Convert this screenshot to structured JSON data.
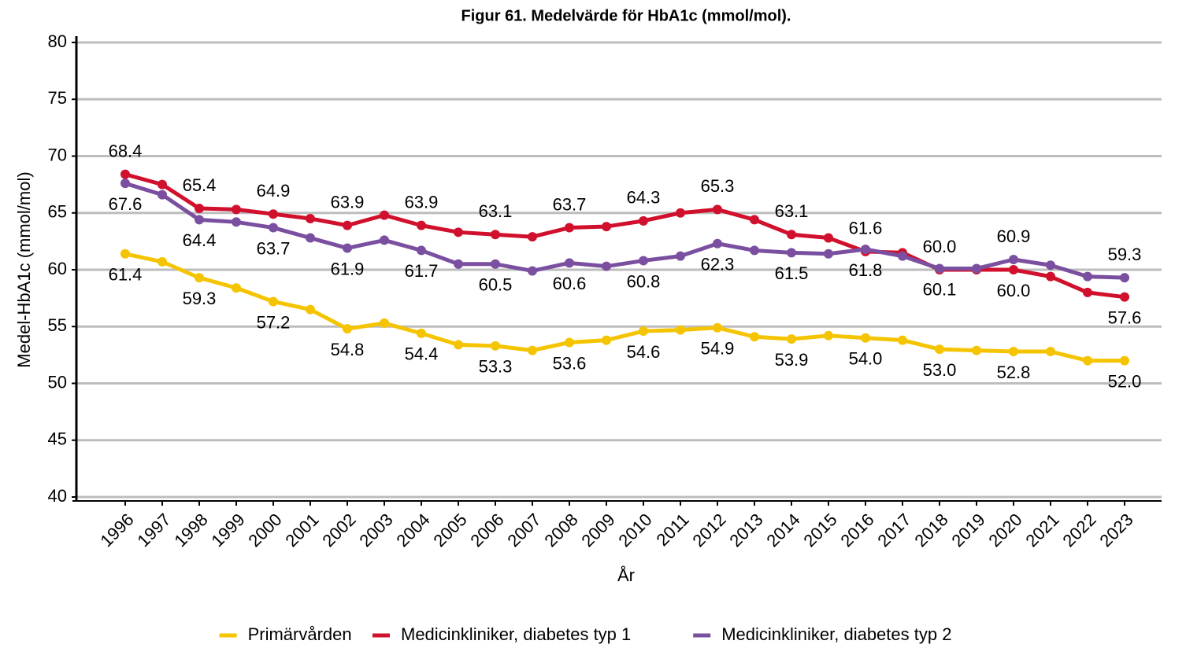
{
  "chart_data": {
    "type": "line",
    "title": "Figur 61. Medelvärde för HbA1c (mmol/mol).",
    "x_label": "År",
    "y_label": "Medel-HbA1c (mmol/mol)",
    "categories": [
      "1996",
      "1997",
      "1998",
      "1999",
      "2000",
      "2001",
      "2002",
      "2003",
      "2004",
      "2005",
      "2006",
      "2007",
      "2008",
      "2009",
      "2010",
      "2011",
      "2012",
      "2013",
      "2014",
      "2015",
      "2016",
      "2017",
      "2018",
      "2019",
      "2020",
      "2021",
      "2022",
      "2023"
    ],
    "ylim": [
      40,
      80
    ],
    "yticks": [
      40,
      45,
      50,
      55,
      60,
      65,
      70,
      75,
      80
    ],
    "grid": true,
    "legend": "bottom",
    "series": [
      {
        "name": "Primärvården",
        "color": "#f5c400",
        "values": [
          61.4,
          60.7,
          59.3,
          58.4,
          57.2,
          56.5,
          54.8,
          55.3,
          54.4,
          53.4,
          53.3,
          52.9,
          53.6,
          53.8,
          54.6,
          54.7,
          54.9,
          54.1,
          53.9,
          54.2,
          54.0,
          53.8,
          53.0,
          52.9,
          52.8,
          52.8,
          52.0,
          52.0
        ],
        "value_labels": [
          "61.4",
          null,
          "59.3",
          null,
          "57.2",
          null,
          "54.8",
          null,
          "54.4",
          null,
          "53.3",
          null,
          "53.6",
          null,
          "54.6",
          null,
          "54.9",
          null,
          "53.9",
          null,
          "54.0",
          null,
          "53.0",
          null,
          "52.8",
          null,
          null,
          "52.0"
        ]
      },
      {
        "name": "Medicinkliniker, diabetes typ 1",
        "color": "#d0102c",
        "values": [
          68.4,
          67.5,
          65.4,
          65.3,
          64.9,
          64.5,
          63.9,
          64.8,
          63.9,
          63.3,
          63.1,
          62.9,
          63.7,
          63.8,
          64.3,
          65.0,
          65.3,
          64.4,
          63.1,
          62.8,
          61.6,
          61.5,
          60.0,
          60.0,
          60.0,
          59.4,
          58.0,
          57.6
        ],
        "value_labels": [
          "68.4",
          null,
          "65.4",
          null,
          "64.9",
          null,
          "63.9",
          null,
          "63.9",
          null,
          "63.1",
          null,
          "63.7",
          null,
          "64.3",
          null,
          "65.3",
          null,
          "63.1",
          null,
          "61.6",
          null,
          "60.0",
          null,
          "60.0",
          null,
          null,
          "57.6"
        ]
      },
      {
        "name": "Medicinkliniker, diabetes typ 2",
        "color": "#7b4fa0",
        "values": [
          67.6,
          66.6,
          64.4,
          64.2,
          63.7,
          62.8,
          61.9,
          62.6,
          61.7,
          60.5,
          60.5,
          59.9,
          60.6,
          60.3,
          60.8,
          61.2,
          62.3,
          61.7,
          61.5,
          61.4,
          61.8,
          61.2,
          60.1,
          60.1,
          60.9,
          60.4,
          59.4,
          59.3
        ],
        "value_labels": [
          "67.6",
          null,
          "64.4",
          null,
          "63.7",
          null,
          "61.9",
          null,
          "61.7",
          null,
          "60.5",
          null,
          "60.6",
          null,
          "60.8",
          null,
          "62.3",
          null,
          "61.5",
          null,
          "61.8",
          null,
          "60.1",
          null,
          "60.9",
          null,
          null,
          "59.3"
        ]
      }
    ]
  }
}
